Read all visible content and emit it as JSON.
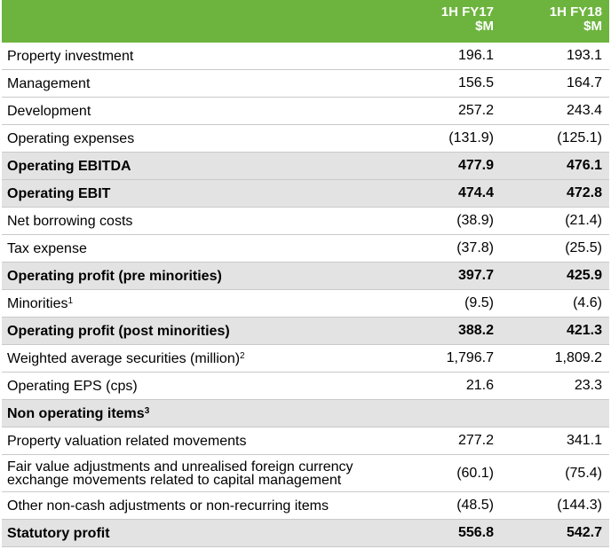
{
  "header": {
    "col1_line1": "1H FY17",
    "col1_line2": "$M",
    "col2_line1": "1H FY18",
    "col2_line2": "$M"
  },
  "rows": [
    {
      "label": "Property investment",
      "sup": "",
      "v1": "196.1",
      "v2": "193.1",
      "bold": false
    },
    {
      "label": "Management",
      "sup": "",
      "v1": "156.5",
      "v2": "164.7",
      "bold": false
    },
    {
      "label": "Development",
      "sup": "",
      "v1": "257.2",
      "v2": "243.4",
      "bold": false
    },
    {
      "label": "Operating expenses",
      "sup": "",
      "v1": "(131.9)",
      "v2": "(125.1)",
      "bold": false
    },
    {
      "label": "Operating EBITDA",
      "sup": "",
      "v1": "477.9",
      "v2": "476.1",
      "bold": true
    },
    {
      "label": "Operating EBIT",
      "sup": "",
      "v1": "474.4",
      "v2": "472.8",
      "bold": true
    },
    {
      "label": "Net borrowing costs",
      "sup": "",
      "v1": "(38.9)",
      "v2": "(21.4)",
      "bold": false
    },
    {
      "label": "Tax expense",
      "sup": "",
      "v1": "(37.8)",
      "v2": "(25.5)",
      "bold": false
    },
    {
      "label": "Operating profit (pre minorities)",
      "sup": "",
      "v1": "397.7",
      "v2": "425.9",
      "bold": true
    },
    {
      "label": "Minorities",
      "sup": "1",
      "v1": "(9.5)",
      "v2": "(4.6)",
      "bold": false
    },
    {
      "label": "Operating profit (post minorities)",
      "sup": "",
      "v1": "388.2",
      "v2": "421.3",
      "bold": true
    },
    {
      "label": "Weighted average securities (million)",
      "sup": "2",
      "v1": "1,796.7",
      "v2": "1,809.2",
      "bold": false
    },
    {
      "label": "Operating EPS (cps)",
      "sup": "",
      "v1": "21.6",
      "v2": "23.3",
      "bold": false
    },
    {
      "label": "Non operating items",
      "sup": "3",
      "v1": "",
      "v2": "",
      "bold": true
    },
    {
      "label": "Property valuation related movements",
      "sup": "",
      "v1": "277.2",
      "v2": "341.1",
      "bold": false
    },
    {
      "label": "Fair value adjustments and unrealised foreign currency exchange movements related to capital management",
      "sup": "",
      "v1": "(60.1)",
      "v2": "(75.4)",
      "bold": false,
      "tall": true
    },
    {
      "label": "Other non-cash adjustments or non-recurring items",
      "sup": "",
      "v1": "(48.5)",
      "v2": "(144.3)",
      "bold": false
    },
    {
      "label": "Statutory profit",
      "sup": "",
      "v1": "556.8",
      "v2": "542.7",
      "bold": true
    }
  ]
}
